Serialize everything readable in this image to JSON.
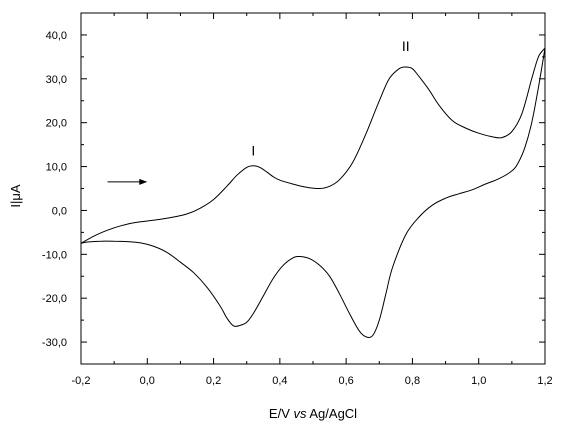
{
  "chart_data": {
    "type": "line",
    "title": "",
    "xlabel_parts": [
      "E/V ",
      "vs",
      " Ag/AgCl"
    ],
    "ylabel": "I|μA",
    "xlim": [
      -0.2,
      1.2
    ],
    "ylim": [
      -35,
      45
    ],
    "xticks": [
      -0.2,
      0.0,
      0.2,
      0.4,
      0.6,
      0.8,
      1.0,
      1.2
    ],
    "xtick_labels": [
      "-0,2",
      "0,0",
      "0,2",
      "0,4",
      "0,6",
      "0,8",
      "1,0",
      "1,2"
    ],
    "yticks": [
      -30,
      -20,
      -10,
      0,
      10,
      20,
      30,
      40
    ],
    "ytick_labels": [
      "-30,0",
      "-20,0",
      "-10,0",
      "0,0",
      "10,0",
      "20,0",
      "30,0",
      "40,0"
    ],
    "grid": false,
    "legend": "none",
    "series": [
      {
        "x": [
          -0.2,
          -0.16,
          -0.12,
          -0.08,
          -0.04,
          0.0,
          0.04,
          0.08,
          0.12,
          0.16,
          0.2,
          0.24,
          0.27,
          0.3,
          0.32,
          0.34,
          0.36,
          0.38,
          0.4,
          0.44,
          0.48,
          0.52,
          0.55,
          0.58,
          0.62,
          0.66,
          0.7,
          0.73,
          0.76,
          0.78,
          0.8,
          0.82,
          0.85,
          0.88,
          0.92,
          0.96,
          1.0,
          1.04,
          1.07,
          1.1,
          1.13,
          1.16,
          1.18,
          1.2
        ],
        "y": [
          -7.5,
          -5.8,
          -4.5,
          -3.5,
          -2.8,
          -2.4,
          -2.0,
          -1.5,
          -0.8,
          0.5,
          2.5,
          5.5,
          8.0,
          9.8,
          10.2,
          9.8,
          8.8,
          7.7,
          6.9,
          6.0,
          5.3,
          5.0,
          5.5,
          7.0,
          11.0,
          17.5,
          25.0,
          30.0,
          32.3,
          32.7,
          32.3,
          30.5,
          27.5,
          24.0,
          20.5,
          18.8,
          17.6,
          16.8,
          16.6,
          18.0,
          22.0,
          30.0,
          35.0,
          37.0
        ]
      },
      {
        "x": [
          1.2,
          1.18,
          1.16,
          1.14,
          1.12,
          1.1,
          1.06,
          1.02,
          0.98,
          0.94,
          0.9,
          0.86,
          0.82,
          0.78,
          0.74,
          0.72,
          0.7,
          0.68,
          0.66,
          0.64,
          0.61,
          0.58,
          0.55,
          0.52,
          0.49,
          0.46,
          0.44,
          0.41,
          0.38,
          0.35,
          0.32,
          0.3,
          0.28,
          0.26,
          0.24,
          0.22,
          0.18,
          0.14,
          0.1,
          0.06,
          0.02,
          -0.02,
          -0.06,
          -0.1,
          -0.14,
          -0.18,
          -0.2
        ],
        "y": [
          37.0,
          28.0,
          20.0,
          14.5,
          11.0,
          9.0,
          7.2,
          6.0,
          4.7,
          3.8,
          2.8,
          1.2,
          -1.5,
          -5.5,
          -13.0,
          -19.0,
          -25.0,
          -28.5,
          -28.8,
          -27.5,
          -23.5,
          -19.0,
          -15.0,
          -12.5,
          -11.0,
          -10.5,
          -10.8,
          -12.5,
          -15.5,
          -19.5,
          -23.5,
          -25.5,
          -26.2,
          -26.3,
          -24.5,
          -21.8,
          -17.5,
          -14.2,
          -11.8,
          -9.6,
          -8.2,
          -7.4,
          -7.1,
          -7.0,
          -7.0,
          -7.2,
          -7.5
        ]
      }
    ],
    "annotations": [
      {
        "text": "I",
        "x": 0.32,
        "y": 12.5
      },
      {
        "text": "II",
        "x": 0.78,
        "y": 36.3
      }
    ],
    "arrow": {
      "from": [
        -0.12,
        6.5
      ],
      "to": [
        0.0,
        6.5
      ]
    }
  }
}
